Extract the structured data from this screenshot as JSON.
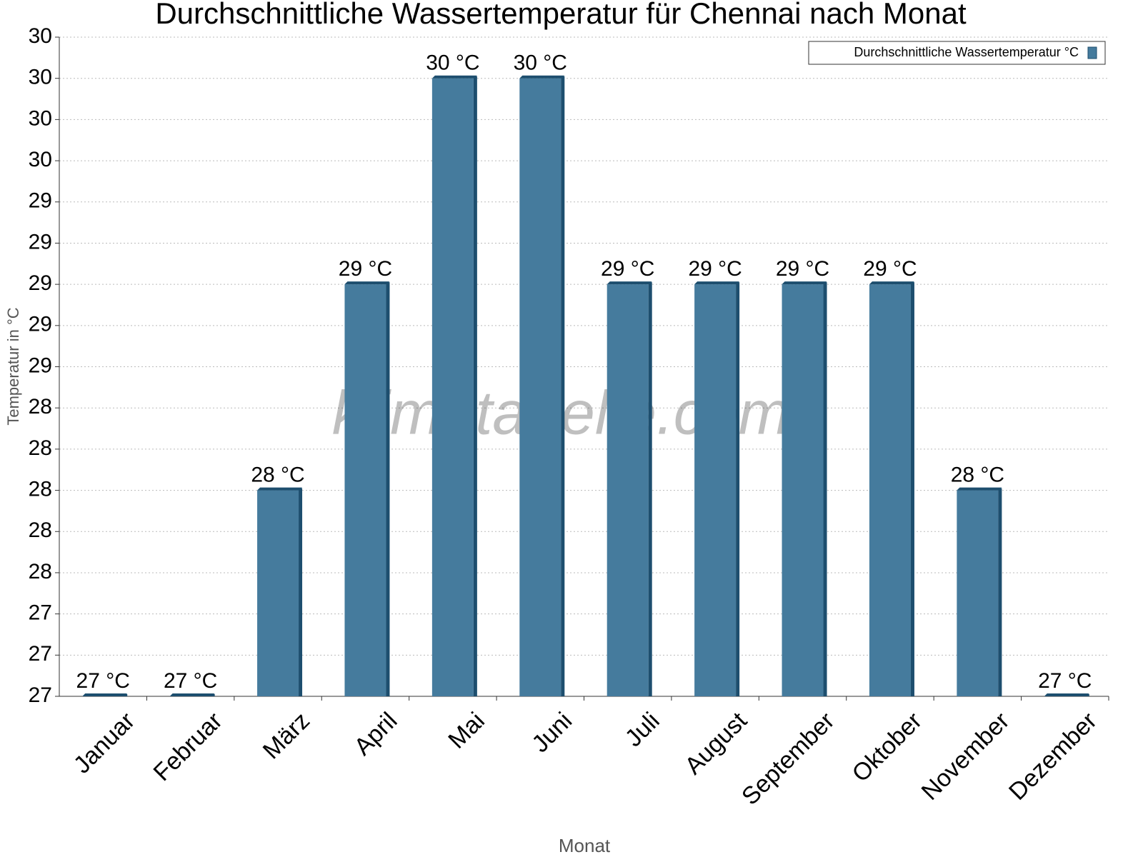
{
  "chart_data": {
    "type": "bar",
    "title": "Durchschnittliche Wassertemperatur für Chennai nach Monat",
    "x_label": "Monat",
    "y_label": "Temperatur in °C",
    "watermark": "klimatabelle.com",
    "categories": [
      "Januar",
      "Februar",
      "März",
      "April",
      "Mai",
      "Juni",
      "Juli",
      "August",
      "September",
      "Oktober",
      "November",
      "Dezember"
    ],
    "series": [
      {
        "name": "Durchschnittliche Wassertemperatur °C",
        "color": "#457b9d",
        "values": [
          27,
          27,
          28,
          29,
          30,
          30,
          29,
          29,
          29,
          29,
          28,
          27
        ],
        "value_labels": [
          "27 °C",
          "27 °C",
          "28 °C",
          "29 °C",
          "30 °C",
          "30 °C",
          "29 °C",
          "29 °C",
          "29 °C",
          "29 °C",
          "28 °C",
          "27 °C"
        ]
      }
    ],
    "ylim": [
      27,
      30.2
    ],
    "yticks": [
      27,
      {
        "value": 27.2,
        "label": "27"
      },
      {
        "value": 27.4,
        "label": "27"
      },
      {
        "value": 27.6,
        "label": "28"
      },
      {
        "value": 27.8,
        "label": "28"
      },
      28,
      {
        "value": 28.2,
        "label": "28"
      },
      {
        "value": 28.4,
        "label": "28"
      },
      {
        "value": 28.6,
        "label": "29"
      },
      {
        "value": 28.8,
        "label": "29"
      },
      29,
      {
        "value": 29.2,
        "label": "29"
      },
      {
        "value": 29.4,
        "label": "29"
      },
      {
        "value": 29.6,
        "label": "30"
      },
      {
        "value": 29.8,
        "label": "30"
      },
      30,
      {
        "value": 30.2,
        "label": "30"
      }
    ],
    "grid": true,
    "legend": "top-right"
  }
}
